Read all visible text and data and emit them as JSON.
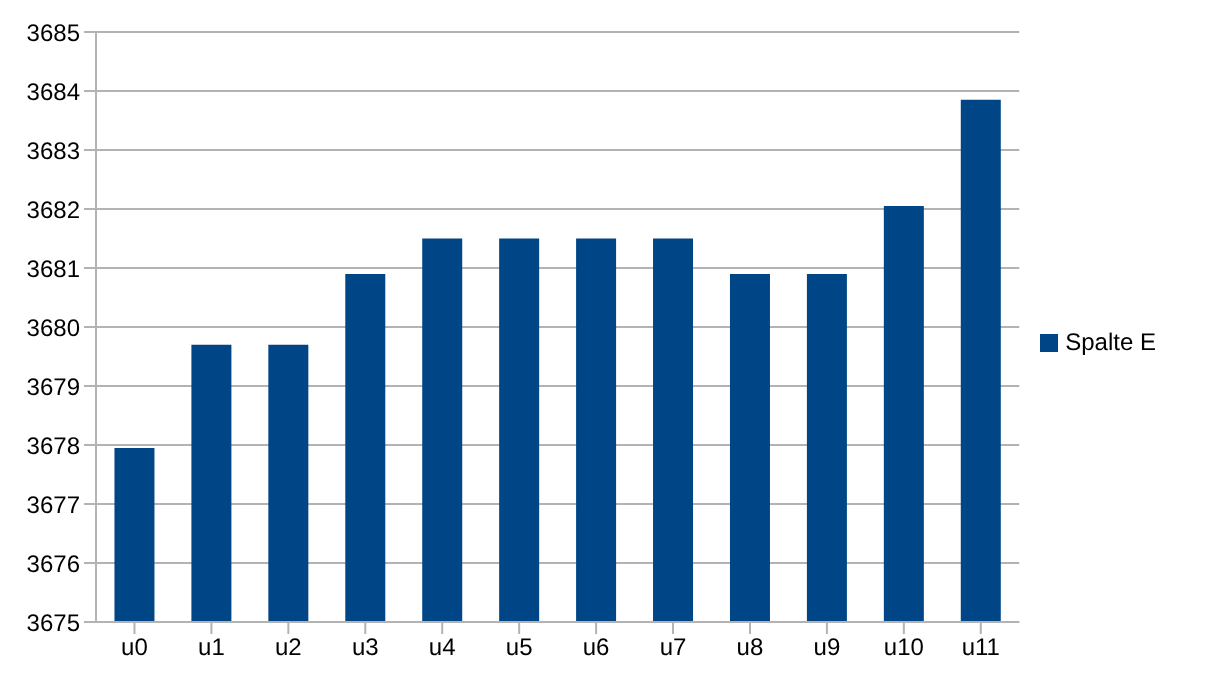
{
  "chart_data": {
    "type": "bar",
    "categories": [
      "u0",
      "u1",
      "u2",
      "u3",
      "u4",
      "u5",
      "u6",
      "u7",
      "u8",
      "u9",
      "u10",
      "u11"
    ],
    "series": [
      {
        "name": "Spalte E",
        "color": "#004586",
        "values": [
          3677.95,
          3679.7,
          3679.7,
          3680.9,
          3681.5,
          3681.5,
          3681.5,
          3681.5,
          3680.9,
          3680.9,
          3682.05,
          3683.85
        ]
      }
    ],
    "ylim": [
      3675,
      3685
    ],
    "yticks": [
      3675,
      3676,
      3677,
      3678,
      3679,
      3680,
      3681,
      3682,
      3683,
      3684,
      3685
    ],
    "grid": "y",
    "legend": "right"
  }
}
